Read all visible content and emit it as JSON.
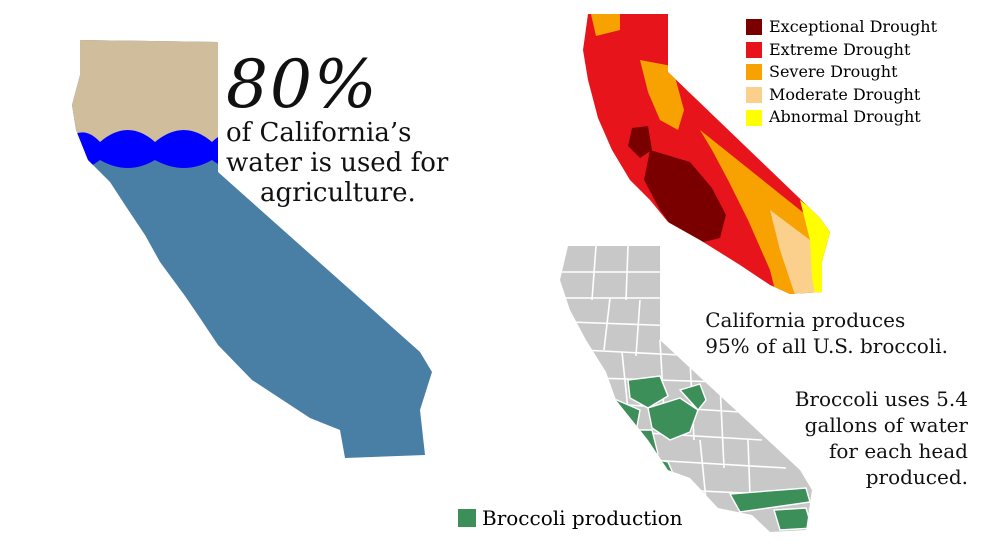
{
  "stat": {
    "percent": "80%",
    "lines": [
      "of California’s",
      "water is used for",
      "agriculture."
    ]
  },
  "colors": {
    "land_tan": "#cfbd9c",
    "water_wave": "#0000ff",
    "state_blue": "#4a7fa5",
    "exceptional": "#7a0000",
    "extreme": "#e8141c",
    "severe": "#f7a200",
    "moderate": "#fbcf8c",
    "abnormal": "#ffff00",
    "county_gray": "#c8c8c8",
    "broccoli_green": "#3d8f5a"
  },
  "drought_legend": [
    {
      "label": "Exceptional Drought",
      "color": "#7a0000"
    },
    {
      "label": "Extreme Drought",
      "color": "#e8141c"
    },
    {
      "label": "Severe Drought",
      "color": "#f7a200"
    },
    {
      "label": "Moderate Drought",
      "color": "#fbcf8c"
    },
    {
      "label": "Abnormal Drought",
      "color": "#ffff00"
    }
  ],
  "facts": {
    "production": [
      "California produces",
      "95% of all U.S. broccoli."
    ],
    "water_use": [
      "Broccoli uses 5.4",
      "gallons of water",
      "for each head",
      "produced."
    ]
  },
  "broccoli_legend": {
    "label": "Broccoli production",
    "color": "#3d8f5a"
  }
}
